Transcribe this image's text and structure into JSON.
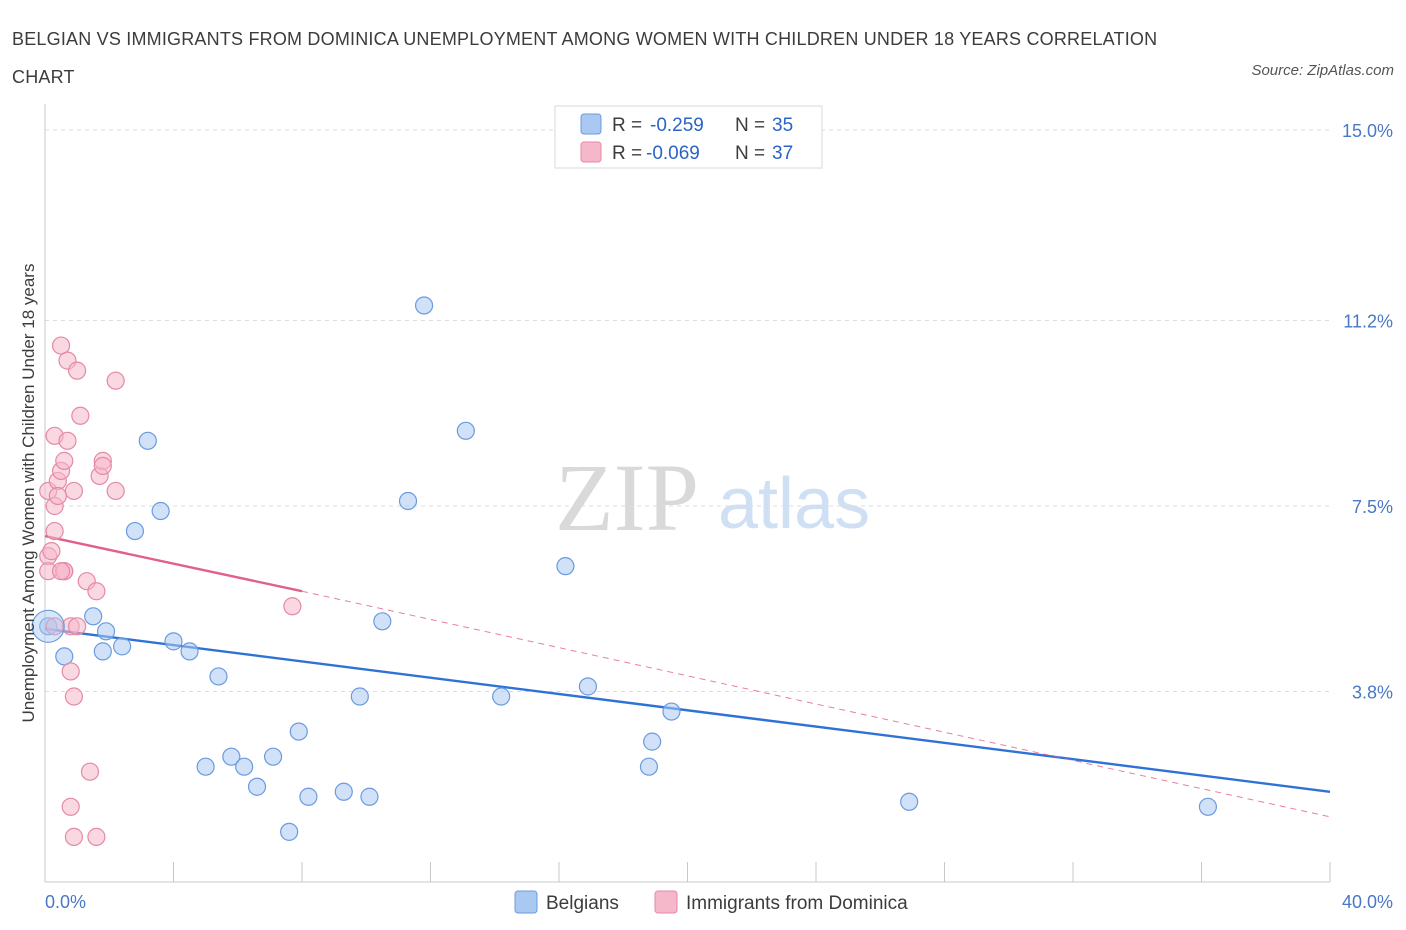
{
  "title": "BELGIAN VS IMMIGRANTS FROM DOMINICA UNEMPLOYMENT AMONG WOMEN WITH CHILDREN UNDER 18 YEARS CORRELATION CHART",
  "source": "Source: ZipAtlas.com",
  "watermark": {
    "zip": "ZIP",
    "atlas": "atlas"
  },
  "legend_top": [
    {
      "r_label": "R =",
      "r_value": "-0.259",
      "n_label": "N =",
      "n_value": "35",
      "color": "#a9c8f2"
    },
    {
      "r_label": "R =",
      "r_value": "-0.069",
      "n_label": "N =",
      "n_value": "37",
      "color": "#f5b8cb"
    }
  ],
  "chart_data": {
    "type": "scatter",
    "title": "BELGIAN VS IMMIGRANTS FROM DOMINICA UNEMPLOYMENT AMONG WOMEN WITH CHILDREN UNDER 18 YEARS CORRELATION CHART",
    "xlabel": "",
    "ylabel": "Unemployment Among Women with Children Under 18 years",
    "xlim": [
      0,
      40
    ],
    "ylim": [
      0,
      15
    ],
    "x_tick_labels": [
      "0.0%",
      "40.0%"
    ],
    "y_ticks": [
      3.8,
      7.5,
      11.2,
      15.0
    ],
    "y_tick_labels": [
      "3.8%",
      "7.5%",
      "11.2%",
      "15.0%"
    ],
    "grid": true,
    "legend_position": "top-center",
    "series": [
      {
        "name": "Belgians",
        "color": "#a9c8f2",
        "stroke": "#6a9be0",
        "trend_color": "#2f72d6",
        "trend": {
          "x0": 0,
          "y0": 5.05,
          "x1": 40,
          "y1": 1.8
        },
        "points": [
          [
            0.1,
            5.1
          ],
          [
            0.6,
            4.5
          ],
          [
            1.9,
            5.0
          ],
          [
            1.5,
            5.3
          ],
          [
            1.8,
            4.6
          ],
          [
            2.4,
            4.7
          ],
          [
            2.8,
            7.0
          ],
          [
            3.2,
            8.8
          ],
          [
            3.6,
            7.4
          ],
          [
            4.0,
            4.8
          ],
          [
            4.5,
            4.6
          ],
          [
            5.4,
            4.1
          ],
          [
            5.0,
            2.3
          ],
          [
            5.8,
            2.5
          ],
          [
            6.2,
            2.3
          ],
          [
            6.6,
            1.9
          ],
          [
            7.1,
            2.5
          ],
          [
            7.6,
            1.0
          ],
          [
            7.9,
            3.0
          ],
          [
            8.2,
            1.7
          ],
          [
            9.3,
            1.8
          ],
          [
            9.8,
            3.7
          ],
          [
            10.1,
            1.7
          ],
          [
            10.5,
            5.2
          ],
          [
            11.3,
            7.6
          ],
          [
            11.8,
            11.5
          ],
          [
            13.1,
            9.0
          ],
          [
            14.2,
            3.7
          ],
          [
            16.2,
            6.3
          ],
          [
            16.9,
            3.9
          ],
          [
            18.8,
            2.3
          ],
          [
            18.9,
            2.8
          ],
          [
            19.5,
            3.4
          ],
          [
            26.9,
            1.6
          ],
          [
            36.2,
            1.5
          ]
        ]
      },
      {
        "name": "Immigrants from Dominica",
        "color": "#f5b8cb",
        "stroke": "#e589a6",
        "trend_color": "#e0608a",
        "trend": {
          "x0": 0,
          "y0": 6.9,
          "x1": 8,
          "y1": 5.8
        },
        "trend_dashed": {
          "x0": 8,
          "y0": 5.8,
          "x1": 40,
          "y1": 1.3
        },
        "points": [
          [
            0.1,
            6.5
          ],
          [
            0.1,
            6.2
          ],
          [
            0.1,
            7.8
          ],
          [
            0.2,
            6.6
          ],
          [
            0.3,
            7.0
          ],
          [
            0.3,
            7.5
          ],
          [
            0.3,
            8.9
          ],
          [
            0.4,
            8.0
          ],
          [
            0.4,
            7.7
          ],
          [
            0.5,
            8.2
          ],
          [
            0.5,
            10.7
          ],
          [
            0.6,
            6.2
          ],
          [
            0.6,
            6.2
          ],
          [
            0.6,
            8.4
          ],
          [
            0.7,
            8.8
          ],
          [
            0.7,
            10.4
          ],
          [
            0.8,
            4.2
          ],
          [
            0.8,
            5.1
          ],
          [
            0.8,
            1.5
          ],
          [
            0.9,
            0.9
          ],
          [
            0.9,
            7.8
          ],
          [
            0.9,
            3.7
          ],
          [
            1.0,
            10.2
          ],
          [
            1.0,
            5.1
          ],
          [
            1.1,
            9.3
          ],
          [
            1.3,
            6.0
          ],
          [
            1.4,
            2.2
          ],
          [
            1.6,
            0.9
          ],
          [
            1.6,
            5.8
          ],
          [
            1.7,
            8.1
          ],
          [
            1.8,
            8.4
          ],
          [
            1.8,
            8.3
          ],
          [
            2.2,
            10.0
          ],
          [
            2.2,
            7.8
          ],
          [
            7.7,
            5.5
          ],
          [
            0.3,
            5.1
          ],
          [
            0.5,
            6.2
          ]
        ]
      }
    ]
  }
}
